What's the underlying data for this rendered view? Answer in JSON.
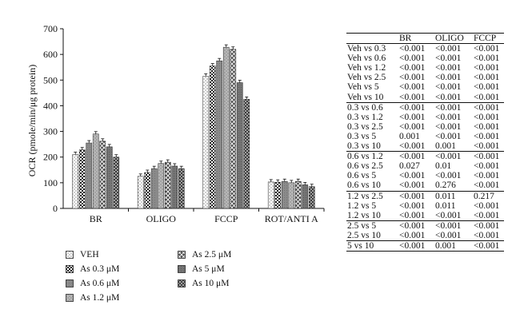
{
  "chart_data": {
    "type": "bar",
    "ylabel": "OCR (pmole/min/μg protein)",
    "ylim": [
      0,
      700
    ],
    "yticks": [
      0,
      100,
      200,
      300,
      400,
      500,
      600,
      700
    ],
    "categories": [
      "BR",
      "OLIGO",
      "FCCP",
      "ROT/ANTI A"
    ],
    "series": [
      {
        "name": "VEH",
        "pattern": "dots-light",
        "values": [
          210,
          125,
          515,
          103
        ]
      },
      {
        "name": "As 0.3 μM",
        "pattern": "checker",
        "values": [
          228,
          140,
          555,
          102
        ]
      },
      {
        "name": "As 0.6 μM",
        "pattern": "gray-medium",
        "values": [
          255,
          155,
          575,
          105
        ]
      },
      {
        "name": "As 1.2 μM",
        "pattern": "gray-light-dots",
        "values": [
          290,
          175,
          628,
          100
        ]
      },
      {
        "name": "As 2.5 μM",
        "pattern": "cross",
        "values": [
          262,
          180,
          620,
          105
        ]
      },
      {
        "name": "As 5 μM",
        "pattern": "gray-dark",
        "values": [
          240,
          165,
          490,
          92
        ]
      },
      {
        "name": "As 10 μM",
        "pattern": "dots-dense",
        "values": [
          200,
          155,
          425,
          85
        ]
      }
    ],
    "grid": false,
    "legend_position": "bottom-left"
  },
  "table": {
    "columns": [
      "",
      "BR",
      "OLIGO",
      "FCCP"
    ],
    "groups": [
      [
        [
          "Veh vs 0.3",
          "<0.001",
          "<0.001",
          "<0.001"
        ],
        [
          "Veh vs 0.6",
          "<0.001",
          "<0.001",
          "<0.001"
        ],
        [
          "Veh vs 1.2",
          "<0.001",
          "<0.001",
          "<0.001"
        ],
        [
          "Veh vs 2.5",
          "<0.001",
          "<0.001",
          "<0.001"
        ],
        [
          "Veh vs 5",
          "<0.001",
          "<0.001",
          "<0.001"
        ],
        [
          "Veh vs 10",
          "<0.001",
          "<0.001",
          "<0.001"
        ]
      ],
      [
        [
          "0.3 vs 0.6",
          "<0.001",
          "<0.001",
          "<0.001"
        ],
        [
          "0.3 vs 1.2",
          "<0.001",
          "<0.001",
          "<0.001"
        ],
        [
          "0.3 vs 2.5",
          "<0.001",
          "<0.001",
          "<0.001"
        ],
        [
          "0.3 vs 5",
          "0.001",
          "<0.001",
          "<0.001"
        ],
        [
          "0.3 vs 10",
          "<0.001",
          "0.001",
          "<0.001"
        ]
      ],
      [
        [
          "0.6 vs 1.2",
          "<0.001",
          "<0.001",
          "<0.001"
        ],
        [
          "0.6 vs 2.5",
          "0.027",
          "0.01",
          "<0.001"
        ],
        [
          "0.6 vs 5",
          "<0.001",
          "<0.001",
          "<0.001"
        ],
        [
          "0.6 vs 10",
          "<0.001",
          "0.276",
          "<0.001"
        ]
      ],
      [
        [
          "1.2 vs 2.5",
          "<0.001",
          "0.011",
          "0.217"
        ],
        [
          "1.2 vs 5",
          "<0.001",
          "0.011",
          "<0.001"
        ],
        [
          "1.2 vs 10",
          "<0.001",
          "<0.001",
          "<0.001"
        ]
      ],
      [
        [
          "2.5 vs 5",
          "<0.001",
          "<0.001",
          "<0.001"
        ],
        [
          "2.5 vs 10",
          "<0.001",
          "<0.001",
          "<0.001"
        ]
      ],
      [
        [
          "5 vs 10",
          "<0.001",
          "0.001",
          "<0.001"
        ]
      ]
    ]
  }
}
